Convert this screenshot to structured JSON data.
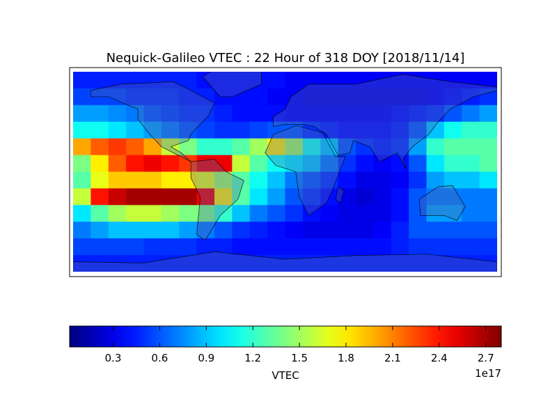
{
  "chart_data": {
    "type": "heatmap",
    "title": "Nequick-Galileo VTEC : 22 Hour of 318 DOY [2018/11/14]",
    "colormap": "jet",
    "clim": [
      0.02,
      2.8
    ],
    "colorbar": {
      "label": "VTEC",
      "offset_label": "1e17",
      "ticks": [
        0.3,
        0.6,
        0.9,
        1.2,
        1.5,
        1.8,
        2.1,
        2.4,
        2.7
      ]
    },
    "values": [
      [
        0.45,
        0.45,
        0.45,
        0.45,
        0.45,
        0.45,
        0.45,
        0.4,
        0.4,
        0.4,
        0.4,
        0.4,
        0.35,
        0.35,
        0.35,
        0.35,
        0.35,
        0.35,
        0.35,
        0.35,
        0.35,
        0.35,
        0.35,
        0.35
      ],
      [
        0.55,
        0.55,
        0.55,
        0.5,
        0.5,
        0.5,
        0.45,
        0.45,
        0.4,
        0.4,
        0.4,
        0.35,
        0.35,
        0.3,
        0.3,
        0.3,
        0.3,
        0.3,
        0.3,
        0.3,
        0.35,
        0.4,
        0.45,
        0.5
      ],
      [
        0.8,
        0.8,
        0.75,
        0.7,
        0.6,
        0.55,
        0.5,
        0.5,
        0.45,
        0.4,
        0.4,
        0.4,
        0.35,
        0.35,
        0.35,
        0.35,
        0.35,
        0.35,
        0.4,
        0.45,
        0.5,
        0.6,
        0.7,
        0.8
      ],
      [
        1.1,
        1.1,
        1.0,
        0.9,
        0.8,
        0.7,
        0.6,
        0.55,
        0.5,
        0.5,
        0.55,
        0.6,
        0.6,
        0.5,
        0.45,
        0.4,
        0.4,
        0.4,
        0.45,
        0.6,
        0.9,
        1.1,
        1.2,
        1.2
      ],
      [
        2.0,
        2.2,
        2.3,
        2.2,
        2.0,
        1.6,
        1.4,
        1.2,
        1.2,
        1.3,
        1.5,
        1.8,
        1.5,
        1.1,
        0.9,
        0.6,
        0.5,
        0.45,
        0.5,
        0.8,
        1.2,
        1.3,
        1.3,
        1.3
      ],
      [
        1.4,
        1.8,
        2.2,
        2.4,
        2.5,
        2.4,
        2.3,
        2.5,
        2.5,
        1.6,
        1.3,
        1.1,
        1.0,
        0.9,
        0.7,
        0.5,
        0.4,
        0.35,
        0.4,
        0.6,
        1.0,
        1.2,
        1.2,
        1.3
      ],
      [
        1.3,
        1.7,
        1.9,
        1.9,
        1.9,
        1.8,
        1.8,
        1.7,
        1.5,
        1.3,
        1.1,
        0.9,
        0.7,
        0.6,
        0.5,
        0.4,
        0.3,
        0.3,
        0.35,
        0.5,
        0.8,
        0.9,
        0.9,
        1.0
      ],
      [
        1.6,
        2.4,
        2.6,
        2.7,
        2.7,
        2.7,
        2.7,
        2.5,
        1.8,
        1.3,
        1.0,
        0.8,
        0.6,
        0.5,
        0.4,
        0.3,
        0.25,
        0.3,
        0.4,
        0.6,
        0.7,
        0.7,
        0.7,
        0.7
      ],
      [
        1.0,
        1.3,
        1.5,
        1.6,
        1.6,
        1.5,
        1.4,
        1.4,
        1.2,
        0.9,
        0.7,
        0.6,
        0.5,
        0.4,
        0.35,
        0.3,
        0.3,
        0.3,
        0.4,
        0.6,
        0.8,
        0.8,
        0.7,
        0.7
      ],
      [
        0.7,
        0.8,
        0.9,
        0.9,
        0.9,
        0.9,
        0.8,
        0.7,
        0.6,
        0.5,
        0.45,
        0.4,
        0.35,
        0.3,
        0.3,
        0.3,
        0.3,
        0.35,
        0.45,
        0.6,
        0.6,
        0.6,
        0.6,
        0.6
      ],
      [
        0.55,
        0.55,
        0.55,
        0.55,
        0.5,
        0.5,
        0.5,
        0.45,
        0.45,
        0.4,
        0.4,
        0.4,
        0.4,
        0.4,
        0.4,
        0.4,
        0.4,
        0.4,
        0.45,
        0.5,
        0.5,
        0.5,
        0.5,
        0.5
      ],
      [
        0.45,
        0.45,
        0.45,
        0.45,
        0.45,
        0.45,
        0.45,
        0.45,
        0.45,
        0.45,
        0.45,
        0.45,
        0.45,
        0.45,
        0.45,
        0.45,
        0.45,
        0.45,
        0.45,
        0.45,
        0.45,
        0.45,
        0.45,
        0.45
      ]
    ]
  }
}
